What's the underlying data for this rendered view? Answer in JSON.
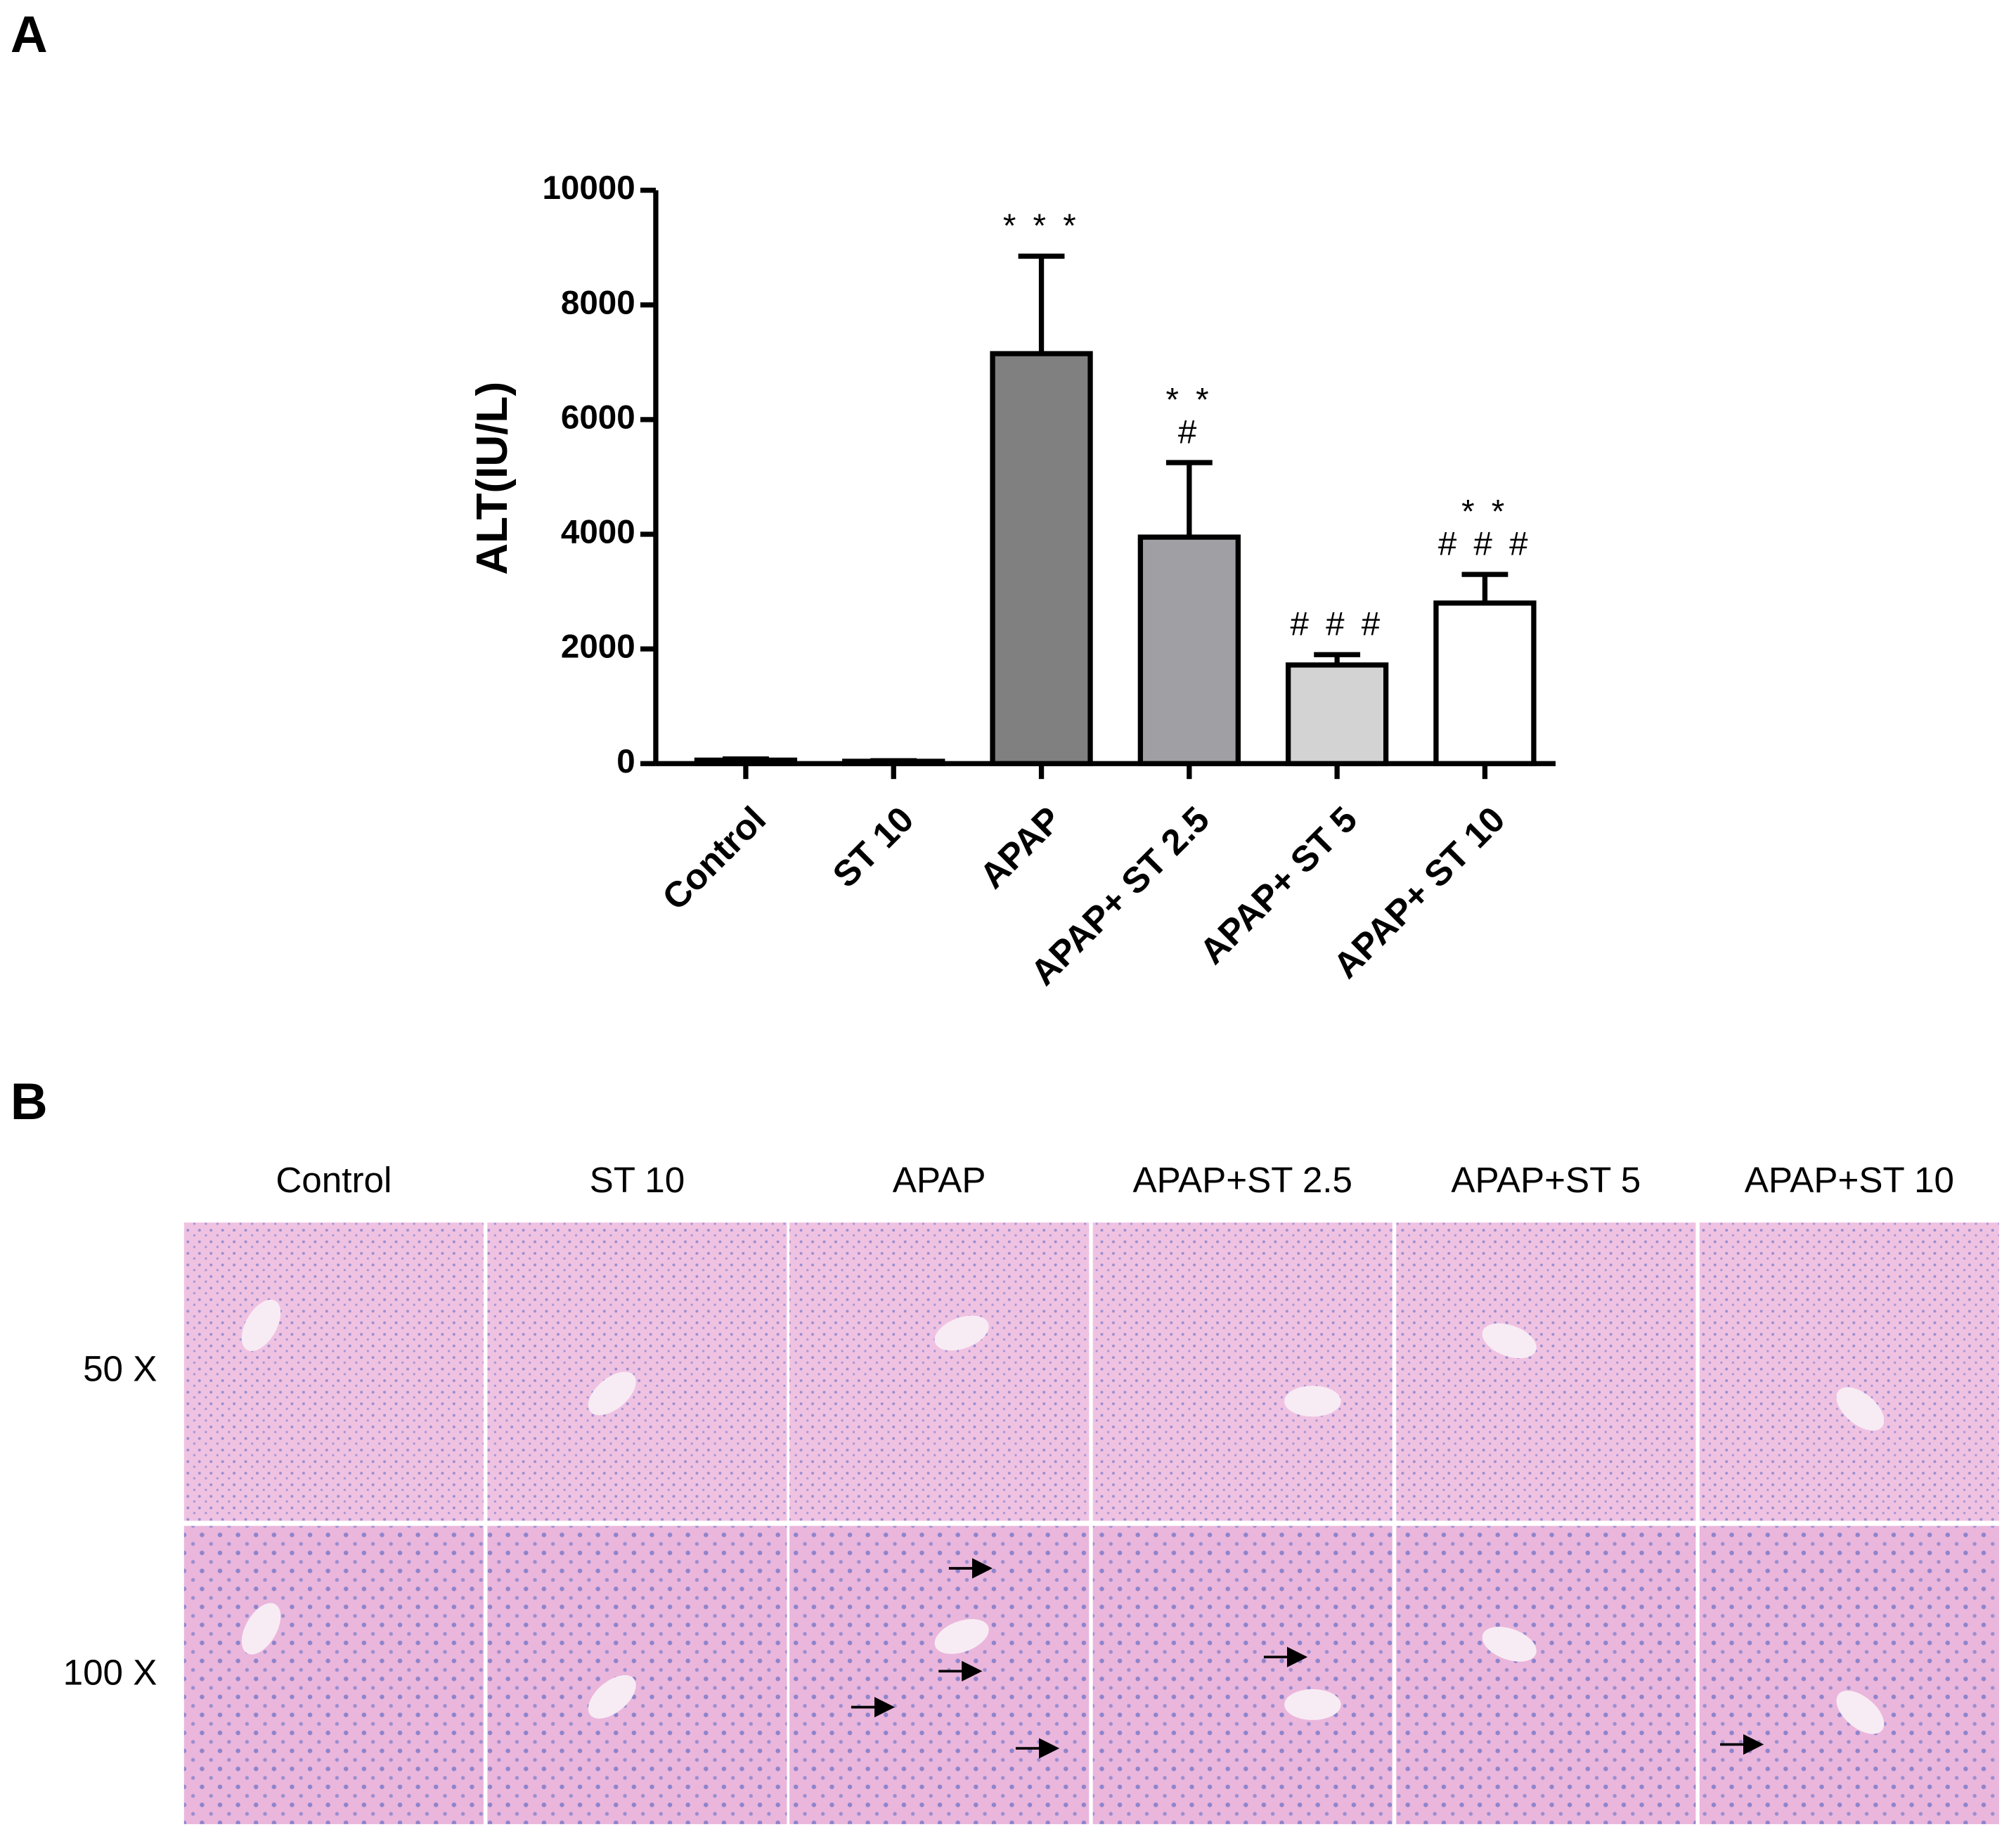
{
  "panel_labels": [
    "A",
    "B"
  ],
  "chart_data": {
    "type": "bar",
    "ylabel": "ALT(IU/L)",
    "categories": [
      "Control",
      "ST 10",
      "APAP",
      "APAP+ ST 2.5",
      "APAP+ ST 5",
      "APAP+ ST 10"
    ],
    "values": [
      60,
      40,
      7150,
      3950,
      1720,
      2800
    ],
    "errors": [
      20,
      10,
      1700,
      1300,
      180,
      500
    ],
    "colors": [
      "#ffffff",
      "#ffffff",
      "#808080",
      "#a0a0a4",
      "#d3d3d3",
      "#ffffff"
    ],
    "annotations": [
      [],
      [],
      [
        "* * *"
      ],
      [
        "* *",
        "#"
      ],
      [
        "# # #"
      ],
      [
        "* *",
        "# # #"
      ]
    ],
    "ylim": [
      0,
      10000
    ],
    "yticks": [
      0,
      2000,
      4000,
      6000,
      8000,
      10000
    ]
  },
  "histology": {
    "columns": [
      "Control",
      "ST 10",
      "APAP",
      "APAP+ST 2.5",
      "APAP+ST 5",
      "APAP+ST 10"
    ],
    "rows": [
      "50 X",
      "100 X"
    ]
  }
}
